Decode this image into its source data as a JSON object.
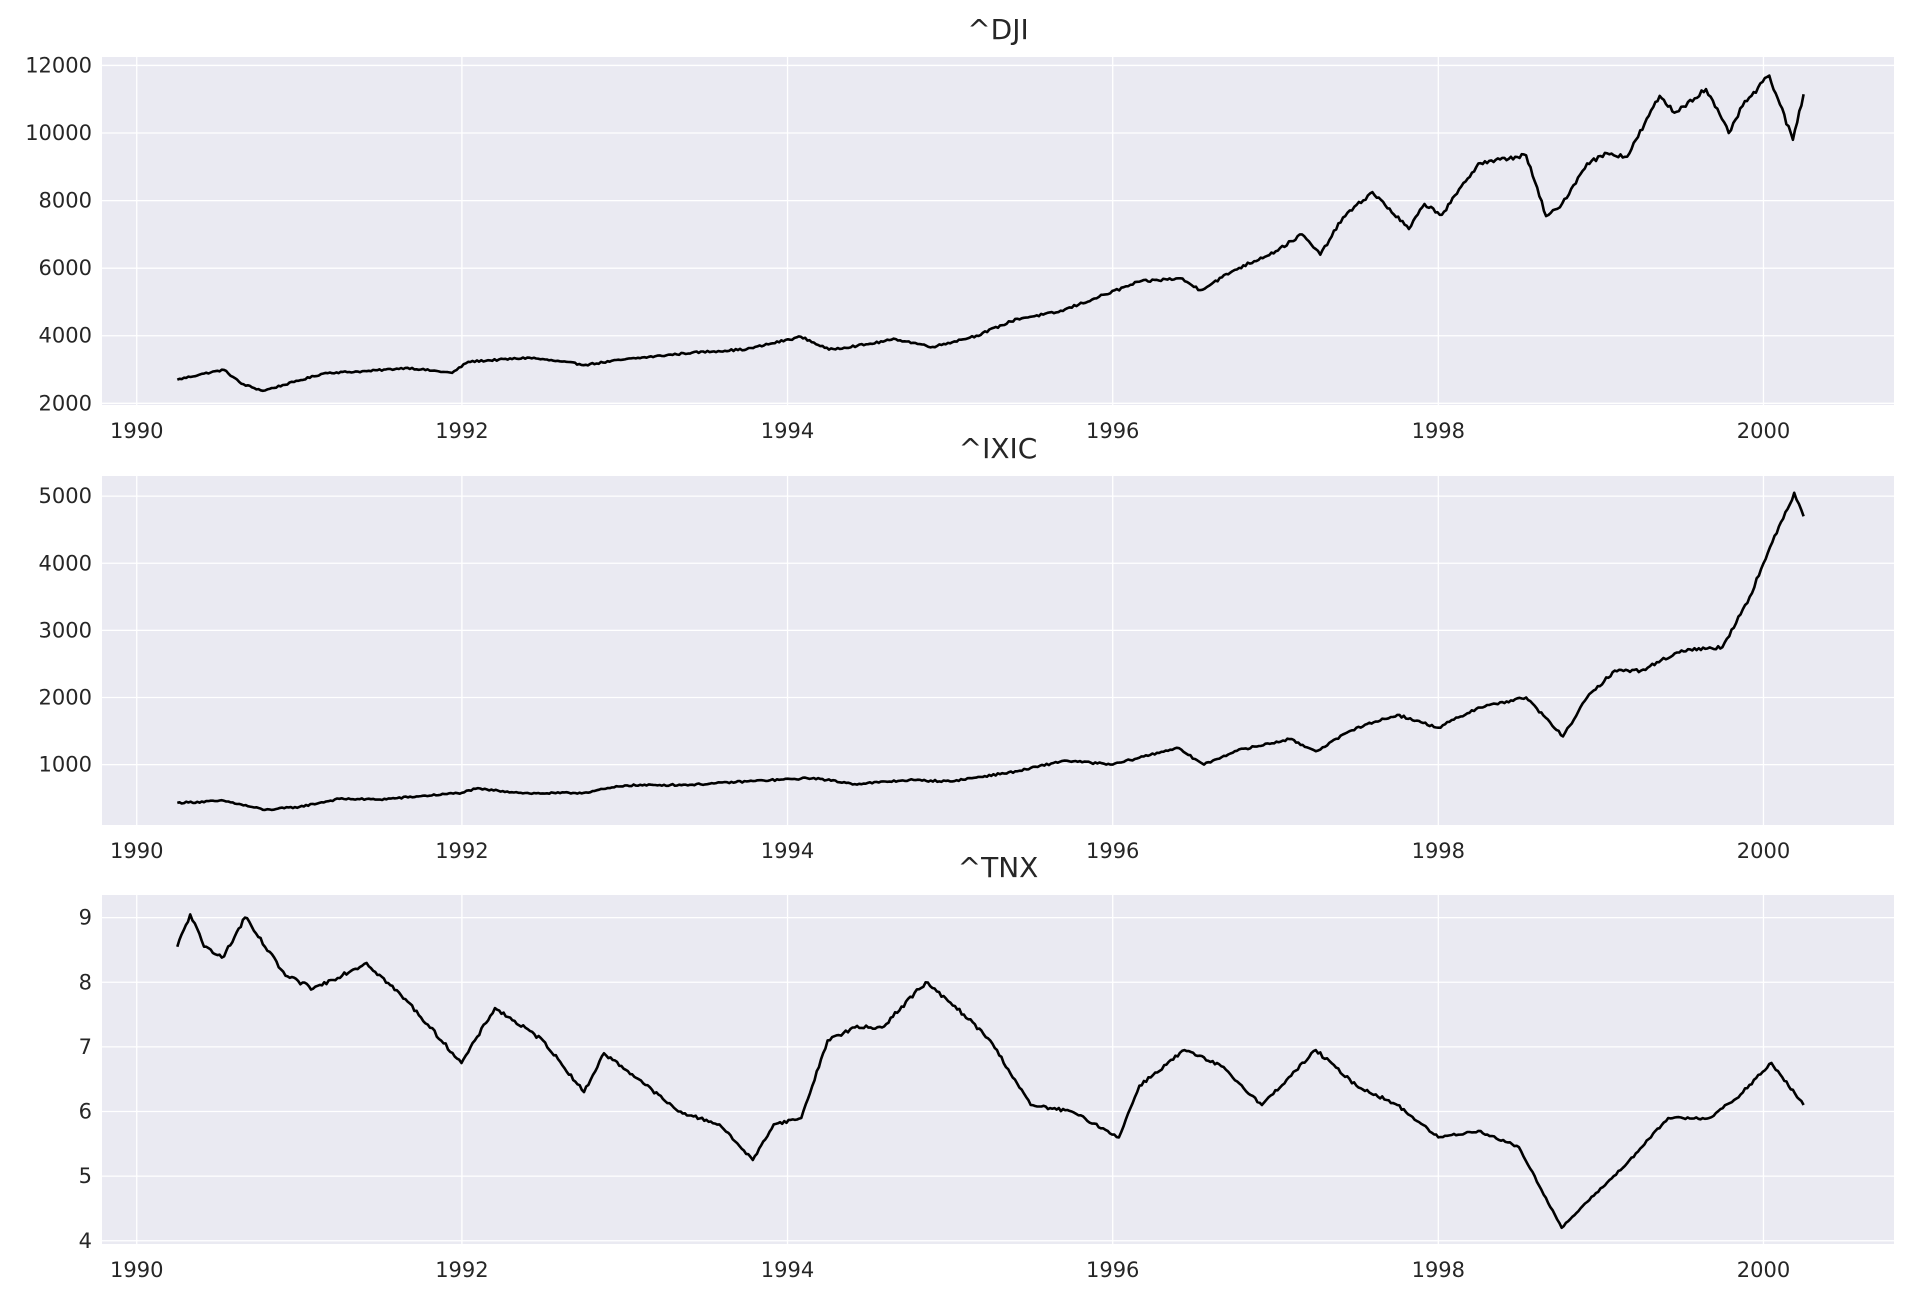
{
  "chart_data": [
    {
      "type": "line",
      "title": "^DJI",
      "xlabel": "",
      "ylabel": "",
      "grid": true,
      "legend": "none",
      "x_ticks": [
        "1990",
        "1992",
        "1994",
        "1996",
        "1998",
        "2000"
      ],
      "y_ticks": [
        "2000",
        "4000",
        "6000",
        "8000",
        "10000",
        "12000"
      ],
      "xlim": [
        "1989-10-15",
        "2000-10-20"
      ],
      "ylim": [
        1950,
        12250
      ],
      "series": [
        {
          "color": "#000000",
          "points": [
            [
              "1990-04-02",
              2700
            ],
            [
              "1990-06-01",
              2880
            ],
            [
              "1990-07-16",
              2990
            ],
            [
              "1990-08-24",
              2580
            ],
            [
              "1990-10-11",
              2370
            ],
            [
              "1990-12-20",
              2630
            ],
            [
              "1991-03-01",
              2900
            ],
            [
              "1991-06-01",
              2950
            ],
            [
              "1991-09-01",
              3050
            ],
            [
              "1991-12-10",
              2900
            ],
            [
              "1992-01-15",
              3230
            ],
            [
              "1992-06-01",
              3350
            ],
            [
              "1992-10-05",
              3140
            ],
            [
              "1993-01-01",
              3300
            ],
            [
              "1993-06-01",
              3500
            ],
            [
              "1993-10-01",
              3600
            ],
            [
              "1994-01-31",
              3970
            ],
            [
              "1994-04-04",
              3590
            ],
            [
              "1994-07-01",
              3750
            ],
            [
              "1994-09-01",
              3900
            ],
            [
              "1994-11-23",
              3670
            ],
            [
              "1995-03-01",
              4000
            ],
            [
              "1995-06-01",
              4500
            ],
            [
              "1995-09-01",
              4700
            ],
            [
              "1995-12-01",
              5150
            ],
            [
              "1996-03-01",
              5600
            ],
            [
              "1996-06-01",
              5700
            ],
            [
              "1996-07-16",
              5350
            ],
            [
              "1996-10-01",
              5950
            ],
            [
              "1997-01-01",
              6500
            ],
            [
              "1997-03-01",
              7000
            ],
            [
              "1997-04-11",
              6400
            ],
            [
              "1997-06-01",
              7500
            ],
            [
              "1997-08-06",
              8250
            ],
            [
              "1997-10-27",
              7160
            ],
            [
              "1997-12-01",
              7900
            ],
            [
              "1998-01-09",
              7580
            ],
            [
              "1998-04-01",
              9100
            ],
            [
              "1998-07-17",
              9340
            ],
            [
              "1998-08-31",
              7540
            ],
            [
              "1998-10-01",
              7800
            ],
            [
              "1998-12-01",
              9100
            ],
            [
              "1999-01-15",
              9400
            ],
            [
              "1999-03-01",
              9300
            ],
            [
              "1999-05-13",
              11100
            ],
            [
              "1999-06-15",
              10600
            ],
            [
              "1999-08-25",
              11300
            ],
            [
              "1999-10-15",
              10000
            ],
            [
              "1999-11-15",
              10800
            ],
            [
              "2000-01-14",
              11700
            ],
            [
              "2000-03-07",
              9800
            ],
            [
              "2000-03-31",
              11150
            ]
          ]
        }
      ]
    },
    {
      "type": "line",
      "title": "^IXIC",
      "xlabel": "",
      "ylabel": "",
      "grid": true,
      "legend": "none",
      "x_ticks": [
        "1990",
        "1992",
        "1994",
        "1996",
        "1998",
        "2000"
      ],
      "y_ticks": [
        "1000",
        "2000",
        "3000",
        "4000",
        "5000"
      ],
      "xlim": [
        "1989-10-15",
        "2000-10-20"
      ],
      "ylim": [
        100,
        5300
      ],
      "series": [
        {
          "color": "#000000",
          "points": [
            [
              "1990-04-02",
              430
            ],
            [
              "1990-07-16",
              460
            ],
            [
              "1990-10-16",
              325
            ],
            [
              "1991-01-01",
              370
            ],
            [
              "1991-04-01",
              490
            ],
            [
              "1991-07-01",
              480
            ],
            [
              "1991-10-01",
              530
            ],
            [
              "1992-01-01",
              580
            ],
            [
              "1992-02-01",
              640
            ],
            [
              "1992-06-01",
              570
            ],
            [
              "1992-10-01",
              580
            ],
            [
              "1993-01-01",
              690
            ],
            [
              "1993-06-01",
              700
            ],
            [
              "1993-10-01",
              750
            ],
            [
              "1994-03-01",
              800
            ],
            [
              "1994-06-01",
              710
            ],
            [
              "1994-10-01",
              770
            ],
            [
              "1995-01-01",
              750
            ],
            [
              "1995-06-01",
              900
            ],
            [
              "1995-09-15",
              1060
            ],
            [
              "1996-01-01",
              1000
            ],
            [
              "1996-05-24",
              1250
            ],
            [
              "1996-07-24",
              1000
            ],
            [
              "1996-10-01",
              1200
            ],
            [
              "1997-02-01",
              1380
            ],
            [
              "1997-04-01",
              1200
            ],
            [
              "1997-07-01",
              1550
            ],
            [
              "1997-10-01",
              1740
            ],
            [
              "1998-01-01",
              1550
            ],
            [
              "1998-04-01",
              1850
            ],
            [
              "1998-07-17",
              2000
            ],
            [
              "1998-10-08",
              1420
            ],
            [
              "1998-12-01",
              2000
            ],
            [
              "1999-02-01",
              2400
            ],
            [
              "1999-04-01",
              2400
            ],
            [
              "1999-07-01",
              2700
            ],
            [
              "1999-10-01",
              2750
            ],
            [
              "1999-12-01",
              3500
            ],
            [
              "2000-01-01",
              4000
            ],
            [
              "2000-03-10",
              5050
            ],
            [
              "2000-03-31",
              4700
            ]
          ]
        }
      ]
    },
    {
      "type": "line",
      "title": "^TNX",
      "xlabel": "",
      "ylabel": "",
      "grid": true,
      "legend": "none",
      "x_ticks": [
        "1990",
        "1992",
        "1994",
        "1996",
        "1998",
        "2000"
      ],
      "y_ticks": [
        "4",
        "5",
        "6",
        "7",
        "8",
        "9"
      ],
      "xlim": [
        "1989-10-15",
        "2000-10-20"
      ],
      "ylim": [
        3.95,
        9.35
      ],
      "series": [
        {
          "color": "#000000",
          "points": [
            [
              "1990-04-02",
              8.55
            ],
            [
              "1990-05-01",
              9.05
            ],
            [
              "1990-06-01",
              8.55
            ],
            [
              "1990-07-16",
              8.4
            ],
            [
              "1990-09-01",
              9.0
            ],
            [
              "1990-10-01",
              8.7
            ],
            [
              "1990-12-01",
              8.1
            ],
            [
              "1991-02-01",
              7.9
            ],
            [
              "1991-06-01",
              8.3
            ],
            [
              "1991-09-01",
              7.7
            ],
            [
              "1991-12-31",
              6.75
            ],
            [
              "1992-03-15",
              7.6
            ],
            [
              "1992-07-01",
              7.1
            ],
            [
              "1992-10-01",
              6.3
            ],
            [
              "1992-11-15",
              6.9
            ],
            [
              "1993-02-01",
              6.5
            ],
            [
              "1993-05-01",
              6.0
            ],
            [
              "1993-08-01",
              5.8
            ],
            [
              "1993-10-15",
              5.25
            ],
            [
              "1993-12-01",
              5.8
            ],
            [
              "1994-02-01",
              5.9
            ],
            [
              "1994-04-01",
              7.1
            ],
            [
              "1994-06-01",
              7.3
            ],
            [
              "1994-08-01",
              7.3
            ],
            [
              "1994-11-07",
              8.0
            ],
            [
              "1995-02-01",
              7.5
            ],
            [
              "1995-04-01",
              7.1
            ],
            [
              "1995-07-01",
              6.1
            ],
            [
              "1995-10-01",
              6.0
            ],
            [
              "1996-01-15",
              5.6
            ],
            [
              "1996-03-01",
              6.4
            ],
            [
              "1996-06-10",
              6.95
            ],
            [
              "1996-09-01",
              6.7
            ],
            [
              "1996-12-01",
              6.1
            ],
            [
              "1997-04-01",
              6.95
            ],
            [
              "1997-07-01",
              6.4
            ],
            [
              "1997-10-01",
              6.1
            ],
            [
              "1998-01-01",
              5.6
            ],
            [
              "1998-04-01",
              5.7
            ],
            [
              "1998-07-01",
              5.45
            ],
            [
              "1998-10-05",
              4.2
            ],
            [
              "1998-12-01",
              4.6
            ],
            [
              "1999-03-01",
              5.2
            ],
            [
              "1999-06-01",
              5.9
            ],
            [
              "1999-09-01",
              5.9
            ],
            [
              "1999-11-01",
              6.2
            ],
            [
              "2000-01-19",
              6.75
            ],
            [
              "2000-03-31",
              6.1
            ]
          ]
        }
      ]
    }
  ]
}
